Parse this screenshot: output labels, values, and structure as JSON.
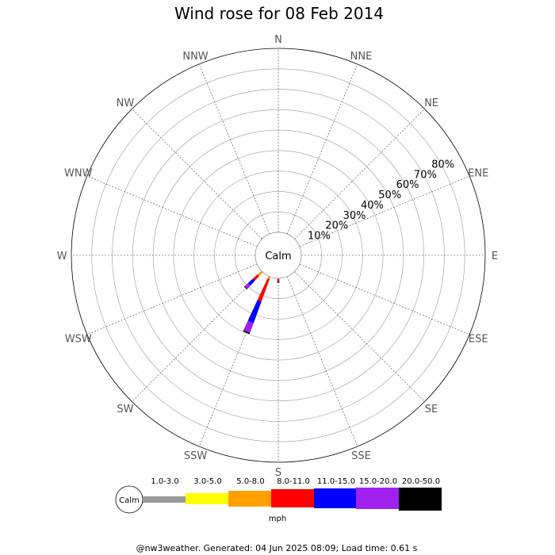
{
  "chart_data": {
    "type": "windrose",
    "title": "Wind rose for 08 Feb 2014",
    "directions": [
      "N",
      "NNE",
      "NE",
      "ENE",
      "E",
      "ESE",
      "SE",
      "SSE",
      "S",
      "SSW",
      "SW",
      "WSW",
      "W",
      "WNW",
      "NW",
      "NNW"
    ],
    "rings": [
      "10%",
      "20%",
      "30%",
      "40%",
      "50%",
      "60%",
      "70%",
      "80%"
    ],
    "ring_values": [
      10,
      20,
      30,
      40,
      50,
      60,
      70,
      80
    ],
    "rmax": 90,
    "calm_label": "Calm",
    "unit": "mph",
    "speed_bins": [
      {
        "label": "1.0-3.0",
        "color": "#999999"
      },
      {
        "label": "3.0-5.0",
        "color": "#ffff00"
      },
      {
        "label": "5.0-8.0",
        "color": "#ffa000"
      },
      {
        "label": "8.0-11.0",
        "color": "#ff0000"
      },
      {
        "label": "11.0-15.0",
        "color": "#0000ff"
      },
      {
        "label": "15.0-20.0",
        "color": "#a020f0"
      },
      {
        "label": "20.0-50.0",
        "color": "#000000"
      }
    ],
    "series": [
      {
        "direction": "N",
        "values": [
          0,
          0,
          0,
          0,
          0,
          0,
          0
        ]
      },
      {
        "direction": "NNE",
        "values": [
          0,
          0,
          0,
          0,
          0,
          0,
          0
        ]
      },
      {
        "direction": "NE",
        "values": [
          0,
          0,
          0,
          0,
          0,
          0,
          0
        ]
      },
      {
        "direction": "ENE",
        "values": [
          0,
          0,
          0,
          0,
          0,
          0,
          0
        ]
      },
      {
        "direction": "E",
        "values": [
          0,
          0,
          0,
          0,
          0,
          0,
          0
        ]
      },
      {
        "direction": "ESE",
        "values": [
          0,
          0,
          0,
          0,
          0,
          0,
          0
        ]
      },
      {
        "direction": "SE",
        "values": [
          0,
          0,
          0,
          0,
          0,
          0,
          0
        ]
      },
      {
        "direction": "SSE",
        "values": [
          0,
          0,
          0,
          0,
          0,
          0,
          0
        ]
      },
      {
        "direction": "S",
        "values": [
          0,
          0,
          0.3,
          1.3,
          0.6,
          0,
          0
        ]
      },
      {
        "direction": "SSW",
        "values": [
          0,
          0,
          1.1,
          11.8,
          11.2,
          5.1,
          0.6
        ]
      },
      {
        "direction": "SW",
        "values": [
          0,
          0,
          2.6,
          2.9,
          3.4,
          2.3,
          0.3
        ]
      },
      {
        "direction": "WSW",
        "values": [
          0,
          0,
          0,
          0,
          0,
          0,
          0
        ]
      },
      {
        "direction": "W",
        "values": [
          0,
          0,
          0,
          0,
          0,
          0,
          0
        ]
      },
      {
        "direction": "WNW",
        "values": [
          0,
          0,
          0,
          0,
          0,
          0,
          0
        ]
      },
      {
        "direction": "NW",
        "values": [
          0,
          0,
          0,
          0,
          0,
          0.3,
          0
        ]
      },
      {
        "direction": "NNW",
        "values": [
          0,
          0,
          0,
          0,
          0,
          0,
          0
        ]
      }
    ],
    "grid": true,
    "legend_placement": "bottom"
  },
  "footer": "@nw3weather. Generated: 04 Jun 2025 08:09; Load time: 0.61 s"
}
